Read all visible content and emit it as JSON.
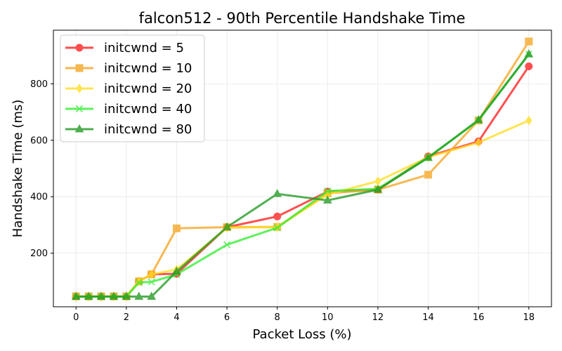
{
  "chart_data": {
    "type": "line",
    "title": "falcon512 - 90th Percentile Handshake Time",
    "xlabel": "Packet Loss (%)",
    "ylabel": "Handshake Time (ms)",
    "xlim": [
      -0.9,
      18.9
    ],
    "ylim": [
      10,
      990
    ],
    "x_ticks": [
      0,
      2,
      4,
      6,
      8,
      10,
      12,
      14,
      16,
      18
    ],
    "y_ticks": [
      200,
      400,
      600,
      800
    ],
    "grid": true,
    "legend_position": "top-left",
    "series": [
      {
        "name": "initcwnd = 5",
        "color": "#ff2020",
        "marker": "circle",
        "x": [
          0,
          0.5,
          1,
          1.5,
          2,
          2.5,
          3,
          4,
          6,
          8,
          10,
          12,
          14,
          16,
          18
        ],
        "values": [
          46,
          46,
          46,
          46,
          46,
          100,
          125,
          127,
          292,
          330,
          418,
          425,
          543,
          596,
          862
        ]
      },
      {
        "name": "initcwnd = 10",
        "color": "#f5a623",
        "marker": "square",
        "x": [
          0,
          0.5,
          1,
          1.5,
          2,
          2.5,
          3,
          4,
          6,
          8,
          10,
          12,
          14,
          16,
          18
        ],
        "values": [
          47,
          47,
          47,
          47,
          47,
          100,
          125,
          288,
          292,
          293,
          412,
          425,
          478,
          670,
          950
        ]
      },
      {
        "name": "initcwnd = 20",
        "color": "#ffdd22",
        "marker": "thin-diamond",
        "x": [
          0,
          0.5,
          1,
          1.5,
          2,
          2.5,
          3,
          4,
          6,
          8,
          10,
          12,
          14,
          16,
          18
        ],
        "values": [
          46,
          46,
          46,
          46,
          46,
          100,
          125,
          142,
          290,
          292,
          408,
          455,
          540,
          592,
          670
        ]
      },
      {
        "name": "initcwnd = 40",
        "color": "#33ee33",
        "marker": "x",
        "x": [
          0,
          0.5,
          1,
          1.5,
          2,
          2.5,
          3,
          4,
          6,
          8,
          10,
          12,
          14,
          16,
          18
        ],
        "values": [
          46,
          46,
          46,
          46,
          46,
          96,
          98,
          125,
          230,
          290,
          420,
          428,
          540,
          670,
          905
        ]
      },
      {
        "name": "initcwnd = 80",
        "color": "#229922",
        "marker": "triangle",
        "x": [
          0,
          0.5,
          1,
          1.5,
          2,
          2.5,
          3,
          4,
          6,
          8,
          10,
          12,
          14,
          16,
          18
        ],
        "values": [
          46,
          46,
          46,
          46,
          46,
          46,
          46,
          135,
          292,
          410,
          387,
          425,
          538,
          672,
          905
        ]
      }
    ]
  }
}
